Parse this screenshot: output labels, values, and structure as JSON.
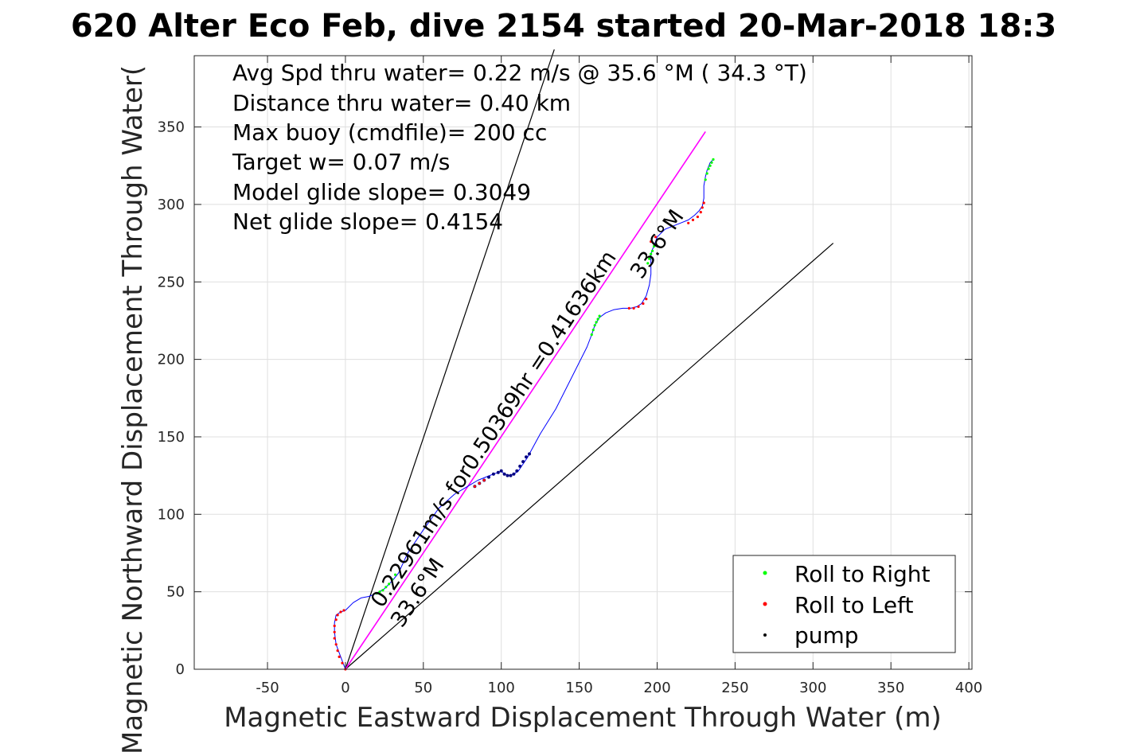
{
  "chart_data": {
    "type": "line",
    "title": "620 Alter Eco Feb, dive 2154 started 20-Mar-2018 18:3",
    "xlabel": "Magnetic Eastward Displacement Through Water (m)",
    "ylabel": "Magnetic Northward Displacement Through Water(",
    "xlim": [
      -97,
      402
    ],
    "ylim": [
      0,
      396
    ],
    "xticks": [
      -50,
      0,
      50,
      100,
      150,
      200,
      250,
      300,
      350,
      400
    ],
    "yticks": [
      0,
      50,
      100,
      150,
      200,
      250,
      300,
      350
    ],
    "xtick_labels": [
      "-50",
      "0",
      "50",
      "100",
      "150",
      "200",
      "250",
      "300",
      "350",
      "400"
    ],
    "ytick_labels": [
      "0",
      "50",
      "100",
      "150",
      "200",
      "250",
      "300",
      "350"
    ],
    "grid": true,
    "legend_position": "bottom-right",
    "annotations": [
      "Avg Spd thru water=  0.22 m/s @  35.6 °M ( 34.3 °T)",
      "Distance thru water=  0.40 km",
      "Max buoy (cmdfile)= 200 cc",
      "Target w= 0.07 m/s",
      "Model glide slope= 0.3049",
      "Net glide slope= 0.4154"
    ],
    "line_labels": {
      "track_summary": "0.22961m/s for0.50369hr =0.41636km",
      "heading_1": "33.6°M",
      "heading_2": "33.6°M"
    },
    "colors": {
      "track": "#0000ff",
      "heading_line": "#ff00ff",
      "roll_right": "#00ff00",
      "roll_left": "#ff0000",
      "pump": "#000080",
      "cone": "#000000"
    },
    "series": [
      {
        "name": "track",
        "x": [
          0,
          -3,
          -6,
          -7,
          -7,
          -6,
          -3,
          0,
          5,
          10,
          15,
          20,
          25,
          30,
          34,
          40,
          50,
          60,
          70,
          75,
          80,
          85,
          90,
          95,
          98,
          100,
          102,
          105,
          108,
          111,
          113,
          115,
          117,
          118,
          125,
          135,
          145,
          155,
          158,
          160,
          163,
          167,
          172,
          178,
          183,
          187,
          190,
          193,
          195,
          196,
          196,
          196,
          197,
          198,
          199,
          200,
          205,
          210,
          215,
          220,
          224,
          227,
          229,
          230,
          230,
          231,
          232,
          234,
          236
        ],
        "y": [
          0,
          8,
          16,
          24,
          30,
          35,
          37,
          38,
          43,
          46,
          47,
          49,
          52,
          57,
          62,
          75,
          90,
          104,
          113,
          116,
          119,
          122,
          124,
          126,
          127,
          128,
          126,
          125,
          126,
          128,
          131,
          134,
          137,
          139,
          152,
          168,
          188,
          208,
          216,
          222,
          227,
          230,
          232,
          233,
          233,
          234,
          236,
          241,
          248,
          255,
          262,
          268,
          271,
          273,
          276,
          279,
          284,
          286,
          288,
          290,
          293,
          296,
          299,
          304,
          312,
          318,
          322,
          327,
          329
        ]
      },
      {
        "name": "heading line",
        "x": [
          0,
          231
        ],
        "y": [
          0,
          347
        ]
      },
      {
        "name": "cone left",
        "x": [
          0,
          134
        ],
        "y": [
          0,
          400
        ]
      },
      {
        "name": "cone right",
        "x": [
          0,
          313
        ],
        "y": [
          0,
          275
        ]
      }
    ],
    "markers": {
      "roll_right": {
        "label": "Roll to Right",
        "x": [
          20,
          22,
          24,
          26,
          28,
          30,
          32,
          158,
          159,
          160,
          161,
          162,
          163,
          194,
          195,
          196,
          197,
          198,
          231,
          232,
          233,
          234,
          235,
          236
        ],
        "y": [
          49,
          50,
          51,
          53,
          55,
          58,
          61,
          216,
          219,
          222,
          224,
          226,
          228,
          262,
          265,
          268,
          270,
          273,
          316,
          320,
          323,
          325,
          327,
          329
        ]
      },
      "roll_left": {
        "label": "Roll to Left",
        "x": [
          0,
          -2,
          -4,
          -5,
          -6,
          -7,
          -7,
          -7,
          -6,
          -5,
          -3,
          -1,
          83,
          86,
          89,
          182,
          185,
          188,
          191,
          193,
          196,
          199,
          220,
          223,
          226,
          228,
          229,
          230
        ],
        "y": [
          0,
          4,
          8,
          12,
          16,
          20,
          24,
          28,
          32,
          35,
          37,
          38,
          118,
          120,
          122,
          233,
          233,
          234,
          236,
          239,
          276,
          279,
          288,
          290,
          292,
          295,
          298,
          301
        ]
      },
      "pump": {
        "label": "pump",
        "x": [
          83,
          86,
          89,
          92,
          95,
          98,
          100,
          102,
          104,
          106,
          108,
          110,
          112,
          114,
          116,
          118
        ],
        "y": [
          118,
          120,
          122,
          124,
          126,
          127,
          128,
          126,
          125,
          125,
          126,
          128,
          131,
          134,
          137,
          139
        ]
      }
    },
    "legend": [
      "Roll to Right",
      "Roll to Left",
      "pump"
    ]
  }
}
